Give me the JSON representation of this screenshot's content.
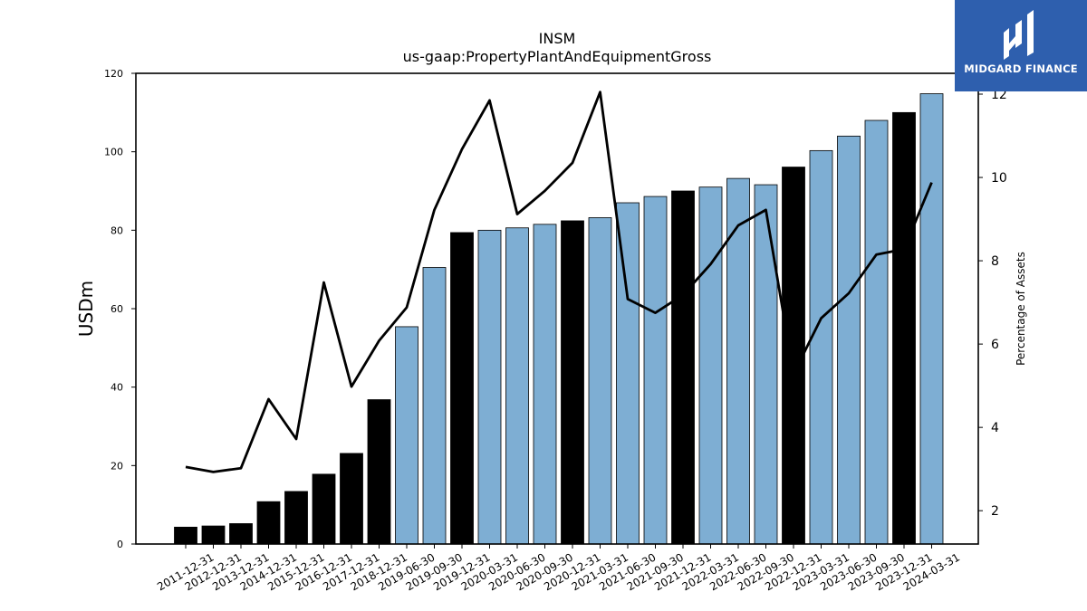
{
  "chart_data": {
    "type": "bar",
    "title": "INSM",
    "subtitle": "us-gaap:PropertyPlantAndEquipmentGross",
    "ylabel": "USDm",
    "y2label": "Percentage of Assets",
    "ylim": [
      0,
      120
    ],
    "y2lim": [
      1.2,
      12.5
    ],
    "yticks": [
      0,
      20,
      40,
      60,
      80,
      100,
      120
    ],
    "y2ticks": [
      2,
      4,
      6,
      8,
      10,
      12
    ],
    "grid": false,
    "colors": {
      "annual": "#000000",
      "quarterly": "#7eaed3",
      "line": "#000000"
    },
    "categories": [
      "2011-12-31",
      "2012-12-31",
      "2013-12-31",
      "2014-12-31",
      "2015-12-31",
      "2016-12-31",
      "2017-12-31",
      "2018-12-31",
      "2019-06-30",
      "2019-09-30",
      "2019-12-31",
      "2020-03-31",
      "2020-06-30",
      "2020-09-30",
      "2020-12-31",
      "2021-03-31",
      "2021-06-30",
      "2021-09-30",
      "2021-12-31",
      "2022-03-31",
      "2022-06-30",
      "2022-09-30",
      "2022-12-31",
      "2023-03-31",
      "2023-06-30",
      "2023-09-30",
      "2023-12-31",
      "2024-03-31"
    ],
    "series": [
      {
        "type": "bar",
        "axis": "left",
        "values": [
          4.3,
          4.6,
          5.2,
          10.8,
          13.4,
          17.8,
          23.1,
          36.8,
          55.4,
          70.5,
          79.4,
          80.0,
          80.6,
          81.5,
          82.4,
          83.2,
          87.0,
          88.6,
          90.0,
          91.0,
          93.2,
          91.6,
          96.1,
          100.3,
          104.0,
          108.0,
          110.0,
          114.8
        ],
        "kind": [
          "annual",
          "annual",
          "annual",
          "annual",
          "annual",
          "annual",
          "annual",
          "annual",
          "quarterly",
          "quarterly",
          "annual",
          "quarterly",
          "quarterly",
          "quarterly",
          "annual",
          "quarterly",
          "quarterly",
          "quarterly",
          "annual",
          "quarterly",
          "quarterly",
          "quarterly",
          "annual",
          "quarterly",
          "quarterly",
          "quarterly",
          "annual",
          "quarterly"
        ]
      },
      {
        "type": "line",
        "axis": "right",
        "values": [
          3.05,
          2.93,
          3.02,
          4.68,
          3.72,
          7.48,
          4.98,
          6.08,
          6.88,
          9.22,
          10.68,
          11.85,
          9.12,
          9.68,
          10.35,
          12.05,
          7.08,
          6.75,
          7.18,
          7.92,
          8.85,
          9.22,
          5.28,
          6.62,
          7.22,
          8.15,
          8.28,
          9.88
        ]
      }
    ]
  },
  "logo": {
    "text": "MIDGARD FINANCE"
  }
}
